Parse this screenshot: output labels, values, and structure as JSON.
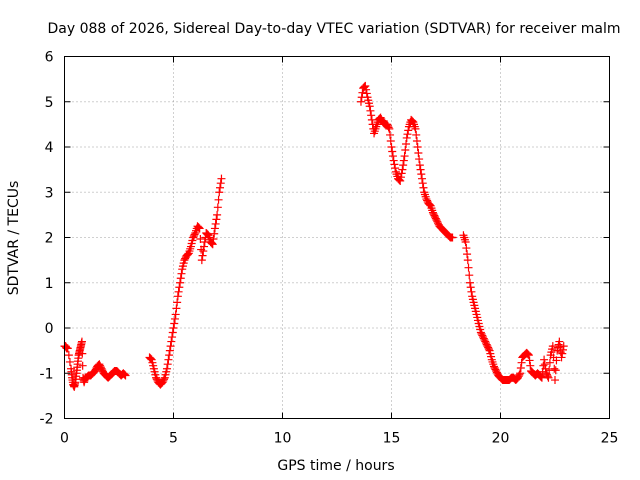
{
  "chart_data": {
    "type": "scatter",
    "title": "Day 088 of 2026, Sidereal Day-to-day VTEC variation (SDTVAR) for receiver malm",
    "xlabel": "GPS time / hours",
    "ylabel": "SDTVAR / TECUs",
    "xlim": [
      0,
      25
    ],
    "ylim": [
      -2,
      6
    ],
    "x_ticks": [
      0,
      5,
      10,
      15,
      20,
      25
    ],
    "x_tick_labels": [
      "0",
      "5",
      "10",
      "15",
      "20",
      "25"
    ],
    "y_ticks": [
      -2,
      -1,
      0,
      1,
      2,
      3,
      4,
      5,
      6
    ],
    "y_tick_labels": [
      "-2",
      "-1",
      "0",
      "1",
      "2",
      "3",
      "4",
      "5",
      "6"
    ],
    "grid": true,
    "marker": "plus",
    "series": [
      {
        "name": "SDTVAR",
        "color": "#ff0000",
        "segments": [
          {
            "x": [
              0.0,
              0.05,
              0.1,
              0.15,
              0.3,
              0.35,
              0.4,
              0.45,
              0.5,
              0.55,
              0.6,
              0.65,
              0.7,
              0.75,
              0.8,
              0.85,
              0.9,
              0.95,
              1.0,
              1.1,
              1.2,
              1.3,
              1.4,
              1.5,
              1.6,
              1.7,
              1.8,
              1.9,
              2.0,
              2.1,
              2.2,
              2.3,
              2.4,
              2.5,
              2.6,
              2.7,
              2.8
            ],
            "y": [
              -0.4,
              -0.4,
              -0.45,
              -0.45,
              -0.9,
              -1.1,
              -1.25,
              -1.3,
              -1.2,
              -1.0,
              -0.8,
              -0.6,
              -0.5,
              -0.4,
              -0.3,
              -1.1,
              -1.2,
              -1.1,
              -1.1,
              -1.05,
              -1.05,
              -1.0,
              -0.95,
              -0.85,
              -0.8,
              -0.9,
              -1.0,
              -1.05,
              -1.1,
              -1.05,
              -1.0,
              -0.95,
              -0.95,
              -1.0,
              -1.05,
              -1.0,
              -1.05
            ]
          },
          {
            "x": [
              3.9,
              4.0,
              4.1,
              4.2,
              4.3,
              4.4,
              4.5,
              4.6,
              4.7,
              4.8,
              4.9,
              5.0,
              5.1,
              5.2,
              5.3,
              5.4,
              5.5,
              5.6,
              5.7,
              5.8,
              5.9,
              6.0,
              6.1,
              6.2,
              6.3,
              6.4,
              6.5,
              6.6,
              6.7,
              6.8,
              6.9,
              7.0,
              7.1,
              7.2
            ],
            "y": [
              -0.65,
              -0.7,
              -0.9,
              -1.1,
              -1.2,
              -1.25,
              -1.2,
              -1.1,
              -0.9,
              -0.6,
              -0.3,
              0.0,
              0.3,
              0.7,
              1.0,
              1.3,
              1.5,
              1.6,
              1.65,
              1.8,
              2.0,
              2.1,
              2.25,
              2.2,
              1.5,
              1.8,
              2.1,
              2.05,
              1.9,
              1.85,
              2.2,
              2.5,
              3.0,
              3.3
            ]
          },
          {
            "x": [
              13.6,
              13.7,
              13.8,
              13.9,
              14.0,
              14.1,
              14.2,
              14.3,
              14.4,
              14.5,
              14.6,
              14.7,
              14.8,
              14.9,
              15.0,
              15.1,
              15.2,
              15.3,
              15.4,
              15.5,
              15.6,
              15.7,
              15.8,
              15.9,
              16.0,
              16.1,
              16.2,
              16.3,
              16.4,
              16.5,
              16.6,
              16.7,
              16.8,
              16.9,
              17.0,
              17.1,
              17.2,
              17.3,
              17.4,
              17.5,
              17.6,
              17.7,
              17.8
            ],
            "y": [
              5.0,
              5.3,
              5.35,
              5.1,
              4.9,
              4.6,
              4.3,
              4.45,
              4.6,
              4.65,
              4.55,
              4.5,
              4.5,
              4.4,
              4.0,
              3.7,
              3.45,
              3.3,
              3.25,
              3.5,
              3.8,
              4.2,
              4.45,
              4.6,
              4.55,
              4.4,
              4.0,
              3.6,
              3.3,
              3.0,
              2.85,
              2.75,
              2.7,
              2.55,
              2.45,
              2.35,
              2.25,
              2.2,
              2.15,
              2.1,
              2.05,
              2.0,
              2.0
            ]
          },
          {
            "x": [
              18.3,
              18.4,
              18.5,
              18.6,
              18.7,
              18.8,
              18.9,
              19.0,
              19.1,
              19.2,
              19.3,
              19.4,
              19.5,
              19.6,
              19.7,
              19.8,
              19.9,
              20.0,
              20.1,
              20.2,
              20.3,
              20.4,
              20.5,
              20.6,
              20.7,
              20.8,
              20.9,
              21.0,
              21.1,
              21.2,
              21.3,
              21.4,
              21.5,
              21.6,
              21.7,
              21.8,
              21.9,
              22.0,
              22.1,
              22.2,
              22.3,
              22.4,
              22.5,
              22.6,
              22.7,
              22.8,
              22.9
            ],
            "y": [
              2.05,
              1.9,
              1.5,
              1.0,
              0.7,
              0.5,
              0.3,
              0.1,
              -0.1,
              -0.2,
              -0.3,
              -0.4,
              -0.5,
              -0.7,
              -0.85,
              -0.95,
              -1.05,
              -1.1,
              -1.15,
              -1.15,
              -1.15,
              -1.15,
              -1.1,
              -1.1,
              -1.15,
              -1.1,
              -1.0,
              -0.65,
              -0.6,
              -0.55,
              -0.6,
              -0.95,
              -1.0,
              -1.05,
              -1.0,
              -1.05,
              -1.1,
              -0.7,
              -1.0,
              -1.1,
              -0.6,
              -0.4,
              -1.15,
              -0.5,
              -0.3,
              -0.65,
              -0.4
            ]
          }
        ]
      }
    ]
  }
}
